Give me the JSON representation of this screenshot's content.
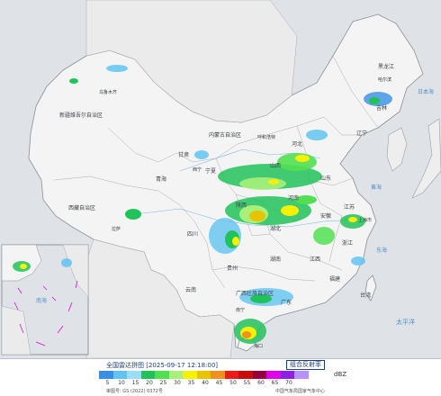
{
  "map": {
    "regions": {
      "xinjiang": "新疆维吾尔自治区",
      "tibet": "西藏自治区",
      "qinghai": "青海",
      "gansu": "甘肃",
      "inner_mongolia": "内蒙古自治区",
      "ningxia": "宁夏",
      "sichuan": "四川",
      "yunnan": "云南",
      "guizhou": "贵州",
      "hunan": "湖南",
      "hubei": "湖北",
      "henan": "河南",
      "shaanxi": "陕西",
      "shanxi": "山西",
      "hebei": "河北",
      "shandong": "山东",
      "jiangsu": "江苏",
      "anhui": "安徽",
      "zhejiang": "浙江",
      "jiangxi": "江西",
      "fujian": "福建",
      "guangdong": "广东",
      "guangxi": "广西壮族自治区",
      "liaoning": "辽宁",
      "jilin": "吉林",
      "heilongjiang": "黑龙江",
      "taiwan": "台湾"
    },
    "cities": {
      "urumqi": "乌鲁木齐",
      "lhasa": "拉萨",
      "xining": "西宁",
      "hohhot": "呼和浩特",
      "harbin": "哈尔滨",
      "shanghai": "上海市",
      "nanning": "南宁",
      "haikou": "海口"
    },
    "seas": {
      "yellow_sea": "黄海",
      "east_sea": "东海",
      "pacific": "太平洋",
      "sea_of_japan": "日本海",
      "south_sea": "南海"
    }
  },
  "legend": {
    "title": "全国雷达拼图 [2025-09-17 12:18:00]",
    "product": "组合反射率",
    "unit": "dBZ",
    "approval": "审图号: GS (2022) 0372号",
    "source": "中国气象局国家气象中心",
    "ticks": [
      "5",
      "10",
      "15",
      "20",
      "25",
      "30",
      "35",
      "40",
      "45",
      "50",
      "55",
      "60",
      "65",
      "70"
    ],
    "colors": [
      "#3a8ee6",
      "#61c3f0",
      "#9ddcf7",
      "#22c25a",
      "#52e052",
      "#a8f07a",
      "#f6f100",
      "#e6c400",
      "#f0901e",
      "#ee1a1a",
      "#c80d0d",
      "#96003c",
      "#e000e6",
      "#8e20e0",
      "#b692ff"
    ]
  }
}
